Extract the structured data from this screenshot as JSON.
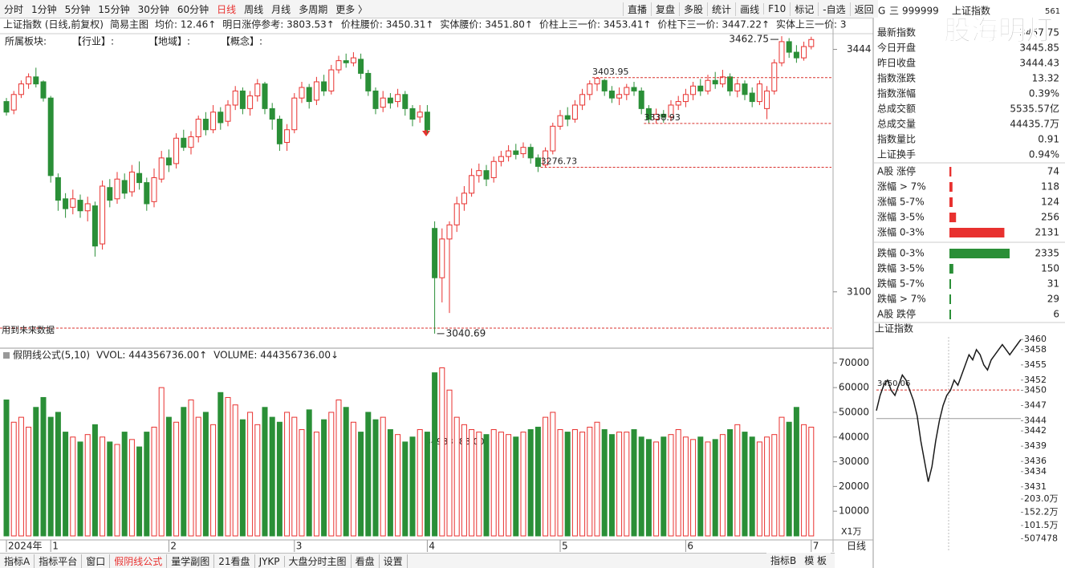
{
  "toolbar": {
    "periods": [
      "分时",
      "1分钟",
      "5分钟",
      "15分钟",
      "30分钟",
      "60分钟",
      "日线",
      "周线",
      "月线",
      "多周期",
      "更多 〉"
    ],
    "active_index": 6,
    "buttons": [
      "直播",
      "复盘",
      "多股",
      "统计",
      "画线",
      "F10",
      "标记",
      "-自选",
      "返回"
    ]
  },
  "quote": {
    "tag": "G",
    "menu": "三",
    "code": "999999",
    "name": "上证指数",
    "extra": "561",
    "rows": [
      {
        "label": "最新指数",
        "value": "3457.75",
        "color": "#e8312f"
      },
      {
        "label": "今日开盘",
        "value": "3445.85",
        "color": "#e8312f"
      },
      {
        "label": "昨日收盘",
        "value": "3444.43",
        "color": "#222222"
      },
      {
        "label": "指数涨跌",
        "value": "13.32",
        "color": "#e8312f"
      },
      {
        "label": "指数涨幅",
        "value": "0.39%",
        "color": "#e8312f"
      },
      {
        "label": "总成交额",
        "value": "5535.57亿",
        "color": "#222222"
      },
      {
        "label": "总成交量",
        "value": "44435.7万",
        "color": "#222222"
      },
      {
        "label": "指数量比",
        "value": "0.91",
        "color": "#2a8f37"
      },
      {
        "label": "上证换手",
        "value": "0.94%",
        "color": "#222222"
      }
    ],
    "breadth": [
      {
        "label": "A股 涨停",
        "value": 74,
        "color": "#e8312f"
      },
      {
        "label": "涨幅 > 7%",
        "value": 118,
        "color": "#e8312f"
      },
      {
        "label": "涨幅 5-7%",
        "value": 124,
        "color": "#e8312f"
      },
      {
        "label": "涨幅 3-5%",
        "value": 256,
        "color": "#e8312f"
      },
      {
        "label": "涨幅 0-3%",
        "value": 2131,
        "color": "#e8312f"
      },
      {
        "label": "跌幅 0-3%",
        "value": 2335,
        "color": "#2a8f37"
      },
      {
        "label": "跌幅 3-5%",
        "value": 150,
        "color": "#2a8f37"
      },
      {
        "label": "跌幅 5-7%",
        "value": 31,
        "color": "#2a8f37"
      },
      {
        "label": "跌幅 > 7%",
        "value": 29,
        "color": "#2a8f37"
      },
      {
        "label": "A股 跌停",
        "value": 6,
        "color": "#2a8f37"
      }
    ]
  },
  "watermark": "股海明灯",
  "bottom_tabs": {
    "left": [
      "指标A",
      "指标平台",
      "窗口",
      "假阴线公式",
      "量学副图",
      "21看盘",
      "JYKP",
      "大盘分时主图",
      "看盘",
      "设置"
    ],
    "active_index": 3,
    "right": [
      "指标B",
      "模 板"
    ],
    "period_tab": "日线"
  },
  "chart_data": [
    {
      "type": "candlestick",
      "title": "上证指数 (日线,前复权)",
      "template": "简易主图",
      "indicators": [
        "均价: 12.46↑",
        "明日涨停参考: 3803.53↑",
        "价柱腰价: 3450.31↑",
        "实体腰价: 3451.80↑",
        "价柱上三一价: 3453.41↑",
        "价柱下三一价: 3447.22↑",
        "实体上三一价: 3"
      ],
      "indicator_color": "#d9302c",
      "sector_labels": [
        "所属板块:",
        "【行业】:",
        "【地域】:",
        "【概念】:"
      ],
      "future_note": "用到未来数据",
      "categories": [
        "2024年",
        null,
        null,
        null,
        null,
        null,
        "1",
        null,
        null,
        null,
        null,
        null,
        null,
        null,
        null,
        null,
        null,
        null,
        null,
        null,
        null,
        null,
        "2",
        null,
        null,
        null,
        null,
        null,
        null,
        null,
        null,
        null,
        null,
        null,
        null,
        null,
        null,
        null,
        null,
        "3",
        null,
        null,
        null,
        null,
        null,
        null,
        null,
        null,
        null,
        null,
        null,
        null,
        null,
        null,
        null,
        null,
        null,
        "4",
        null,
        null,
        null,
        null,
        null,
        null,
        null,
        null,
        null,
        null,
        null,
        null,
        null,
        null,
        null,
        null,
        null,
        "5",
        null,
        null,
        null,
        null,
        null,
        null,
        null,
        null,
        null,
        null,
        null,
        null,
        null,
        null,
        null,
        null,
        "6",
        null,
        null,
        null,
        null,
        null,
        null,
        null,
        null,
        null,
        null,
        null,
        null,
        null,
        null,
        null,
        null,
        "7"
      ],
      "open": [
        3370,
        3358,
        3380,
        3395,
        3405,
        3398,
        3375,
        3262,
        3232,
        3220,
        3230,
        3215,
        3222,
        3168,
        3248,
        3232,
        3258,
        3242,
        3268,
        3255,
        3228,
        3260,
        3290,
        3282,
        3318,
        3305,
        3320,
        3345,
        3330,
        3355,
        3342,
        3365,
        3385,
        3360,
        3378,
        3395,
        3360,
        3345,
        3312,
        3330,
        3375,
        3390,
        3372,
        3398,
        3385,
        3415,
        3428,
        3425,
        3430,
        3410,
        3385,
        3362,
        3375,
        3370,
        3380,
        3360,
        3348,
        3355,
        3190,
        3120,
        3175,
        3195,
        3225,
        3240,
        3265,
        3272,
        3262,
        3285,
        3292,
        3300,
        3296,
        3305,
        3290,
        3280,
        3300,
        3335,
        3350,
        3345,
        3365,
        3380,
        3395,
        3400,
        3385,
        3375,
        3380,
        3390,
        3385,
        3360,
        3345,
        3352,
        3348,
        3365,
        3370,
        3380,
        3392,
        3385,
        3400,
        3395,
        3405,
        3385,
        3395,
        3382,
        3370,
        3360,
        3385,
        3425,
        3455,
        3440,
        3432,
        3448
      ],
      "close": [
        3355,
        3380,
        3395,
        3405,
        3395,
        3375,
        3265,
        3230,
        3218,
        3232,
        3215,
        3225,
        3165,
        3250,
        3230,
        3260,
        3240,
        3270,
        3255,
        3225,
        3262,
        3290,
        3280,
        3318,
        3305,
        3320,
        3345,
        3330,
        3355,
        3340,
        3365,
        3385,
        3360,
        3378,
        3395,
        3360,
        3345,
        3310,
        3330,
        3375,
        3390,
        3370,
        3398,
        3385,
        3415,
        3428,
        3425,
        3432,
        3410,
        3385,
        3360,
        3375,
        3368,
        3380,
        3360,
        3345,
        3355,
        3330,
        3120,
        3175,
        3195,
        3225,
        3240,
        3265,
        3272,
        3260,
        3285,
        3292,
        3300,
        3295,
        3305,
        3290,
        3278,
        3300,
        3335,
        3350,
        3345,
        3365,
        3380,
        3395,
        3403,
        3385,
        3375,
        3380,
        3390,
        3385,
        3360,
        3345,
        3352,
        3348,
        3365,
        3370,
        3380,
        3392,
        3385,
        3400,
        3395,
        3405,
        3385,
        3395,
        3380,
        3370,
        3395,
        3385,
        3425,
        3455,
        3440,
        3432,
        3448,
        3458
      ],
      "high": [
        3375,
        3385,
        3400,
        3410,
        3418,
        3400,
        3378,
        3268,
        3240,
        3245,
        3238,
        3235,
        3228,
        3258,
        3260,
        3270,
        3268,
        3280,
        3285,
        3262,
        3275,
        3300,
        3302,
        3325,
        3330,
        3328,
        3350,
        3355,
        3365,
        3362,
        3372,
        3392,
        3390,
        3385,
        3402,
        3398,
        3368,
        3350,
        3338,
        3382,
        3398,
        3395,
        3405,
        3408,
        3422,
        3435,
        3438,
        3440,
        3438,
        3415,
        3390,
        3385,
        3382,
        3388,
        3385,
        3365,
        3365,
        3365,
        3200,
        3190,
        3200,
        3235,
        3250,
        3275,
        3282,
        3280,
        3292,
        3300,
        3308,
        3310,
        3312,
        3310,
        3295,
        3305,
        3340,
        3358,
        3362,
        3372,
        3388,
        3400,
        3403.95,
        3402,
        3392,
        3390,
        3395,
        3398,
        3390,
        3365,
        3360,
        3358,
        3372,
        3378,
        3388,
        3398,
        3402,
        3408,
        3412,
        3415,
        3410,
        3402,
        3400,
        3390,
        3400,
        3392,
        3430,
        3462.75,
        3460,
        3450,
        3455,
        3462
      ],
      "low": [
        3350,
        3352,
        3375,
        3388,
        3390,
        3370,
        3255,
        3215,
        3205,
        3210,
        3205,
        3200,
        3150,
        3160,
        3220,
        3225,
        3232,
        3235,
        3245,
        3215,
        3220,
        3255,
        3270,
        3275,
        3300,
        3295,
        3312,
        3322,
        3325,
        3330,
        3335,
        3358,
        3352,
        3350,
        3370,
        3352,
        3330,
        3300,
        3300,
        3325,
        3368,
        3360,
        3365,
        3378,
        3380,
        3410,
        3418,
        3420,
        3402,
        3378,
        3352,
        3355,
        3360,
        3362,
        3350,
        3335,
        3340,
        3325,
        3040.69,
        3085,
        3070,
        3185,
        3215,
        3235,
        3255,
        3250,
        3255,
        3278,
        3285,
        3288,
        3290,
        3282,
        3270,
        3276.73,
        3295,
        3330,
        3335,
        3340,
        3358,
        3372,
        3385,
        3378,
        3368,
        3365,
        3372,
        3378,
        3352,
        3338.93,
        3338.93,
        3340,
        3342,
        3358,
        3362,
        3372,
        3378,
        3380,
        3388,
        3390,
        3378,
        3376,
        3372,
        3362,
        3365,
        3345,
        3380,
        3420,
        3432,
        3425,
        3428,
        3444
      ],
      "ylim": [
        3036,
        3464
      ],
      "yticks": [
        3100,
        3444
      ],
      "high_label": 3462.75,
      "low_label": 3040.69,
      "ref_lines": [
        3403.95,
        3338.93,
        3276.73
      ],
      "up_color": "#e8312f",
      "down_color": "#2a8f37"
    },
    {
      "type": "bar",
      "indicator": "假阴线公式(5,10)",
      "series_labels": [
        {
          "text": "VVOL: 444356736.00↑",
          "color": "#222222"
        },
        {
          "text": "VOLUME: 444356736.00↓",
          "color": "#1f78d1"
        }
      ],
      "ref_label": "34983188.00",
      "unit_label": "X1万",
      "values": [
        55000,
        46000,
        48000,
        44000,
        52000,
        56000,
        48000,
        50000,
        42000,
        40000,
        38000,
        41000,
        45000,
        40000,
        38000,
        37000,
        42000,
        39000,
        36000,
        42000,
        44000,
        60000,
        48000,
        46000,
        52000,
        55000,
        48000,
        50000,
        45000,
        58000,
        56000,
        53000,
        47000,
        50000,
        45000,
        52000,
        48000,
        46000,
        50000,
        48000,
        43000,
        51000,
        42000,
        47000,
        50000,
        55000,
        52000,
        46000,
        42000,
        50000,
        47000,
        48000,
        43000,
        41000,
        38000,
        40000,
        43000,
        42000,
        66000,
        68000,
        59000,
        48000,
        45000,
        43000,
        42000,
        41000,
        43000,
        42000,
        41000,
        40000,
        42000,
        43000,
        44000,
        48000,
        50000,
        43000,
        42000,
        43000,
        42000,
        44000,
        46000,
        43000,
        41000,
        42000,
        42000,
        43000,
        40000,
        39000,
        38000,
        40000,
        41000,
        43000,
        40000,
        39000,
        40000,
        38000,
        39000,
        41000,
        43000,
        45000,
        42000,
        40000,
        38000,
        40000,
        41000,
        48000,
        46000,
        52000,
        45000,
        44000
      ],
      "ylim": [
        0,
        74000
      ],
      "yticks": [
        10000,
        20000,
        30000,
        40000,
        50000,
        60000,
        70000
      ]
    },
    {
      "type": "line",
      "title": "上证指数",
      "color": "#1a1a1a",
      "values": [
        3446,
        3449,
        3451,
        3452,
        3450,
        3449,
        3451,
        3453,
        3452,
        3450,
        3448,
        3445,
        3440,
        3436,
        3432,
        3435,
        3440,
        3444,
        3447,
        3449,
        3450,
        3452,
        3451,
        3453,
        3455,
        3457,
        3456,
        3458,
        3457,
        3455,
        3454,
        3456,
        3457,
        3458,
        3459,
        3458,
        3457,
        3458,
        3459,
        3460
      ],
      "ylim": [
        3430.5,
        3460.5
      ],
      "yticks": [
        3460,
        3458,
        3455,
        3452,
        3450,
        3447,
        3444,
        3442,
        3439,
        3436,
        3434,
        3431
      ],
      "prev_close": 3444.43,
      "ref_line": 3450.06,
      "volume_ylim": [
        0,
        2030000
      ],
      "volume_ticks": [
        {
          "value": 2030000,
          "label": "203.0万"
        },
        {
          "value": 1522000,
          "label": "152.2万"
        },
        {
          "value": 1015000,
          "label": "101.5万"
        },
        507478
      ]
    }
  ]
}
